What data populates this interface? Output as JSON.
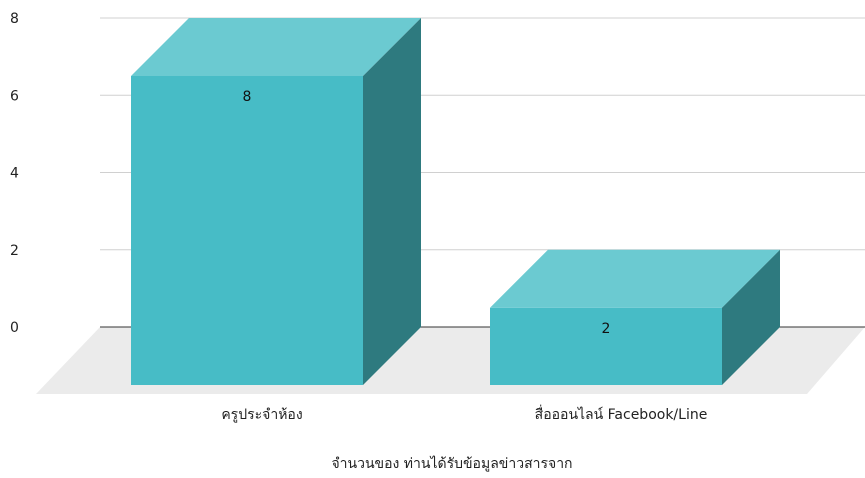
{
  "chart_data": {
    "type": "bar",
    "title": "",
    "xlabel": "จำนวนของ ท่านได้รับข้อมูลข่าวสารจาก",
    "ylabel": "",
    "ylim": [
      0,
      8
    ],
    "yticks": [
      0,
      2,
      4,
      6,
      8
    ],
    "categories": [
      "ครูประจำห้อง",
      "สื่อออนไลน์ Facebook/Line"
    ],
    "values": [
      8,
      2
    ],
    "data_labels": [
      "8",
      "2"
    ],
    "grid": true,
    "legend": "none",
    "colors": {
      "front": "#47bcc6",
      "top": "#6bcad1",
      "side": "#2e7a7f",
      "floor": "#ebebeb",
      "grid": "#d0d0d0",
      "axis": "#333333",
      "text": "#222222"
    }
  }
}
